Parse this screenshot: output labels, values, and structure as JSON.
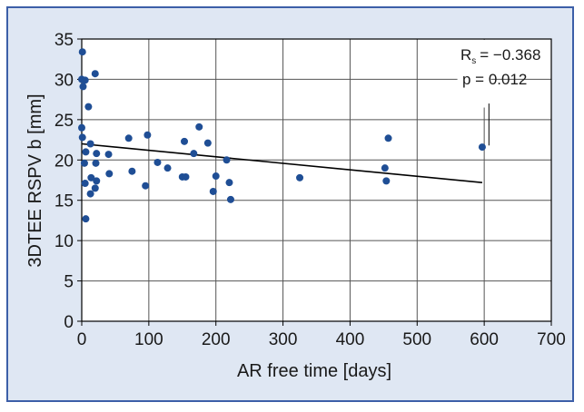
{
  "colors": {
    "frame_border": "#3c5fa8",
    "frame_fill": "#dfe7f3",
    "plot_fill": "#ffffff",
    "marker": "#1f4e95",
    "line": "#000000"
  },
  "chart_data": {
    "type": "scatter",
    "title": "",
    "xlabel": "AR free time [days]",
    "ylabel": "3DTEE RSPV b [mm]",
    "xlim": [
      0,
      700
    ],
    "ylim": [
      0,
      35
    ],
    "xticks": [
      "0",
      "100",
      "200",
      "300",
      "400",
      "500",
      "600",
      "700"
    ],
    "yticks": [
      "0",
      "5",
      "10",
      "15",
      "20",
      "25",
      "30",
      "35"
    ],
    "grid": true,
    "points": [
      {
        "x": 1,
        "y": 33.4
      },
      {
        "x": 0,
        "y": 30.0
      },
      {
        "x": 2,
        "y": 29.1
      },
      {
        "x": 5,
        "y": 29.9
      },
      {
        "x": 0,
        "y": 24.0
      },
      {
        "x": 1,
        "y": 22.8
      },
      {
        "x": 20,
        "y": 30.7
      },
      {
        "x": 10,
        "y": 26.6
      },
      {
        "x": 13,
        "y": 22.0
      },
      {
        "x": 6,
        "y": 21.0
      },
      {
        "x": 22,
        "y": 20.8
      },
      {
        "x": 40,
        "y": 20.7
      },
      {
        "x": 4,
        "y": 19.6
      },
      {
        "x": 21,
        "y": 19.6
      },
      {
        "x": 14,
        "y": 17.8
      },
      {
        "x": 22,
        "y": 17.4
      },
      {
        "x": 41,
        "y": 18.3
      },
      {
        "x": 5,
        "y": 17.1
      },
      {
        "x": 20,
        "y": 16.5
      },
      {
        "x": 13,
        "y": 15.8
      },
      {
        "x": 6,
        "y": 12.7
      },
      {
        "x": 70,
        "y": 22.7
      },
      {
        "x": 98,
        "y": 23.1
      },
      {
        "x": 75,
        "y": 18.6
      },
      {
        "x": 95,
        "y": 16.8
      },
      {
        "x": 113,
        "y": 19.7
      },
      {
        "x": 128,
        "y": 19.0
      },
      {
        "x": 150,
        "y": 17.9
      },
      {
        "x": 155,
        "y": 17.9
      },
      {
        "x": 153,
        "y": 22.3
      },
      {
        "x": 175,
        "y": 24.1
      },
      {
        "x": 188,
        "y": 22.1
      },
      {
        "x": 167,
        "y": 20.8
      },
      {
        "x": 200,
        "y": 18.0
      },
      {
        "x": 196,
        "y": 16.1
      },
      {
        "x": 216,
        "y": 20.0
      },
      {
        "x": 220,
        "y": 17.2
      },
      {
        "x": 222,
        "y": 15.1
      },
      {
        "x": 325,
        "y": 17.8
      },
      {
        "x": 452,
        "y": 19.0
      },
      {
        "x": 454,
        "y": 17.4
      },
      {
        "x": 457,
        "y": 22.7
      },
      {
        "x": 597,
        "y": 21.6
      }
    ],
    "regression_line": {
      "x": [
        0,
        597
      ],
      "y": [
        22.0,
        17.2
      ]
    },
    "annotations": {
      "rs_label": "R",
      "rs_subscript": "s",
      "rs_value": "= −0.368",
      "p_text": "p = 0.012"
    }
  }
}
